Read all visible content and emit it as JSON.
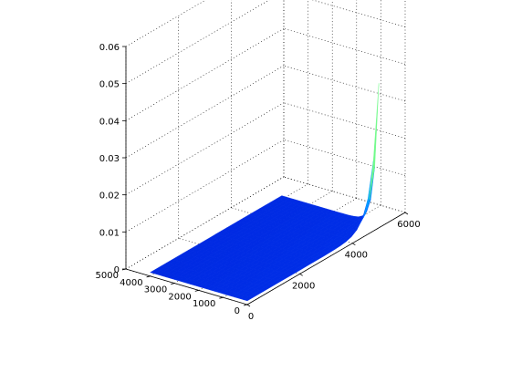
{
  "chart_data": {
    "type": "surface",
    "title": "",
    "xlabel": "",
    "ylabel": "",
    "zlabel": "",
    "grid": true,
    "colormap": "jet",
    "xlim": [
      0,
      6000
    ],
    "ylim": [
      0,
      5000
    ],
    "zlim": [
      0,
      0.06
    ],
    "x_ticks": [
      0,
      2000,
      4000,
      6000
    ],
    "y_ticks": [
      0,
      1000,
      2000,
      3000,
      4000,
      5000
    ],
    "z_ticks": [
      0,
      0.01,
      0.02,
      0.03,
      0.04,
      0.05,
      0.06
    ],
    "x_tick_labels": [
      "0",
      "2000",
      "4000",
      "6000"
    ],
    "y_tick_labels": [
      "0",
      "1000",
      "2000",
      "3000",
      "4000",
      "5000"
    ],
    "z_tick_labels": [
      "0",
      "0.01",
      "0.02",
      "0.03",
      "0.04",
      "0.05",
      "0.06"
    ],
    "surface_extent": {
      "x": [
        0,
        5000
      ],
      "y": [
        0,
        4000
      ]
    },
    "peak": {
      "x": 5000,
      "y": 0,
      "z": 0.039
    },
    "baseline_z": 0.001
  }
}
